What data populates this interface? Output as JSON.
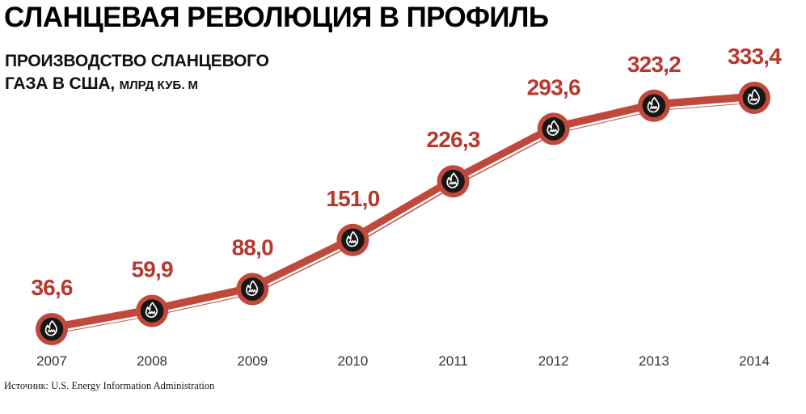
{
  "header": {
    "title": "СЛАНЦЕВАЯ РЕВОЛЮЦИЯ В ПРОФИЛЬ",
    "subtitle_line1": "ПРОИЗВОДСТВО СЛАНЦЕВОГО",
    "subtitle_line2": "ГАЗА В США,",
    "subtitle_unit": "МЛРД КУБ. М"
  },
  "footer": {
    "source": "Источник: U.S. Energy Information Administration"
  },
  "colors": {
    "line": "#c0493c",
    "line_highlight": "#ffffff",
    "marker_ring": "#c0493c",
    "marker_core": "#161616",
    "flame": "#ffffff",
    "value_label": "#b6392e",
    "year_label": "#333333",
    "title_text": "#000000"
  },
  "chart_data": {
    "type": "line",
    "title": "Производство сланцевого газа в США",
    "ylabel": "млрд куб. м",
    "x": [
      "2007",
      "2008",
      "2009",
      "2010",
      "2011",
      "2012",
      "2013",
      "2014"
    ],
    "values": [
      36.6,
      59.9,
      88.0,
      151.0,
      226.3,
      293.6,
      323.2,
      333.4
    ],
    "value_labels": [
      "36,6",
      "59,9",
      "88,0",
      "151,0",
      "226,3",
      "293,6",
      "323,2",
      "333,4"
    ],
    "xlabel": "",
    "grid": false,
    "legend": "none",
    "marker_icon": "flame-icon",
    "axis_lines": false
  }
}
